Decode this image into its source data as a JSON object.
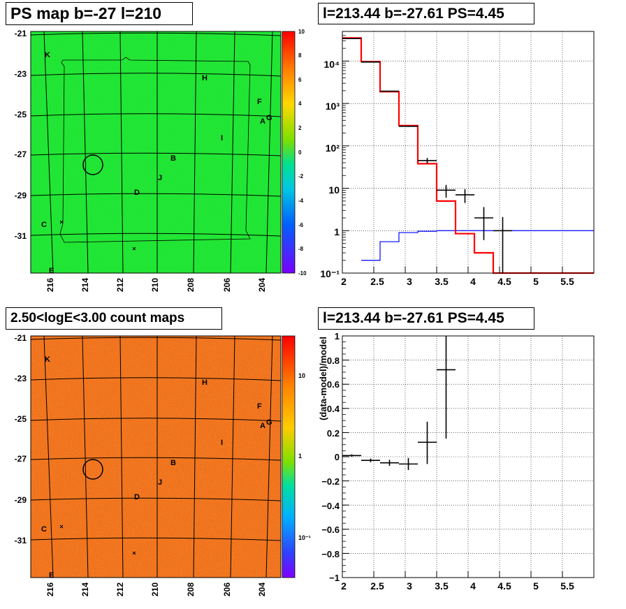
{
  "panels": {
    "ps_map": {
      "title": "PS map b=-27 l=210",
      "y_ticks": [
        "-21",
        "-23",
        "-25",
        "-27",
        "-29",
        "-31"
      ],
      "x_ticks": [
        "216",
        "214",
        "212",
        "210",
        "208",
        "206",
        "204"
      ],
      "colorbar_ticks": [
        "10",
        "8",
        "6",
        "4",
        "2",
        "0",
        "-2",
        "-4",
        "-6",
        "-8",
        "-10"
      ],
      "colorbar_range": [
        -10,
        10
      ],
      "source_labels": [
        "K",
        "H",
        "F",
        "A",
        "G",
        "I",
        "B",
        "J",
        "D",
        "C",
        "E"
      ],
      "base_color": "#22e635"
    },
    "count_map": {
      "title": "2.50<logE<3.00 count maps",
      "y_ticks": [
        "-21",
        "-23",
        "-25",
        "-27",
        "-29",
        "-31"
      ],
      "x_ticks": [
        "216",
        "214",
        "212",
        "210",
        "208",
        "206",
        "204"
      ],
      "colorbar_ticks": [
        "10",
        "1",
        "10⁻¹"
      ],
      "colorbar_scale": "log",
      "source_labels": [
        "K",
        "H",
        "F",
        "A",
        "G",
        "I",
        "B",
        "J",
        "D",
        "C",
        "E"
      ],
      "base_color": "#f07820"
    }
  },
  "chart_data": [
    {
      "type": "line",
      "title": "l=213.44 b=-27.61 PS=4.45",
      "xlabel": "",
      "ylabel": "",
      "xlim": [
        2.0,
        6.0
      ],
      "ylim": [
        0.1,
        50000
      ],
      "yscale": "log",
      "grid": true,
      "x_ticks": [
        "2",
        "2.5",
        "3",
        "3.5",
        "4",
        "4.5",
        "5",
        "5.5"
      ],
      "y_ticks": [
        "10⁻¹",
        "1",
        "10",
        "10²",
        "10³",
        "10⁴"
      ],
      "series": [
        {
          "kind": "data_points",
          "color": "#000000",
          "x": [
            2.15,
            2.45,
            2.75,
            3.05,
            3.35,
            3.65,
            3.95,
            4.25,
            4.55
          ],
          "y": [
            34000,
            9500,
            1950,
            290,
            45,
            9,
            7,
            2,
            1
          ],
          "xerr": 0.15,
          "ylow": [
            33000,
            9300,
            1900,
            280,
            38,
            6,
            4.5,
            0.6,
            0.1
          ],
          "yhigh": [
            35000,
            9700,
            2000,
            300,
            52,
            12,
            9.5,
            3.6,
            2.1
          ]
        },
        {
          "kind": "model_total",
          "color": "#ff0000",
          "edges": [
            2.0,
            2.3,
            2.6,
            2.9,
            3.2,
            3.5,
            3.8,
            4.1,
            4.4,
            6.0
          ],
          "values": [
            35000,
            9700,
            1900,
            300,
            38,
            5,
            0.85,
            0.3,
            0.1
          ]
        },
        {
          "kind": "model_component",
          "color": "#0000ff",
          "edges": [
            2.3,
            2.6,
            2.9,
            3.2,
            3.5,
            6.0
          ],
          "values": [
            0.2,
            0.55,
            0.9,
            0.97,
            1.0
          ]
        }
      ]
    },
    {
      "type": "scatter",
      "title": "l=213.44 b=-27.61 PS=4.45",
      "xlabel": "",
      "ylabel": "(data-model)/model",
      "xlim": [
        2.0,
        6.0
      ],
      "ylim": [
        -1,
        1
      ],
      "grid": true,
      "x_ticks": [
        "2",
        "2.5",
        "3",
        "3.5",
        "4",
        "4.5",
        "5",
        "5.5"
      ],
      "y_ticks": [
        "1",
        "0.8",
        "0.6",
        "0.4",
        "0.2",
        "0",
        "−0.2",
        "−0.4",
        "−0.6",
        "−0.8",
        "−1"
      ],
      "series": [
        {
          "kind": "residuals",
          "color": "#000000",
          "x": [
            2.15,
            2.45,
            2.75,
            3.05,
            3.35,
            3.65
          ],
          "y": [
            0.01,
            -0.03,
            -0.05,
            -0.06,
            0.12,
            0.72
          ],
          "xerr": 0.15,
          "ylow": [
            0.0,
            -0.045,
            -0.075,
            -0.11,
            -0.06,
            0.15
          ],
          "yhigh": [
            0.02,
            -0.015,
            -0.025,
            -0.01,
            0.29,
            1.0
          ]
        }
      ]
    }
  ]
}
